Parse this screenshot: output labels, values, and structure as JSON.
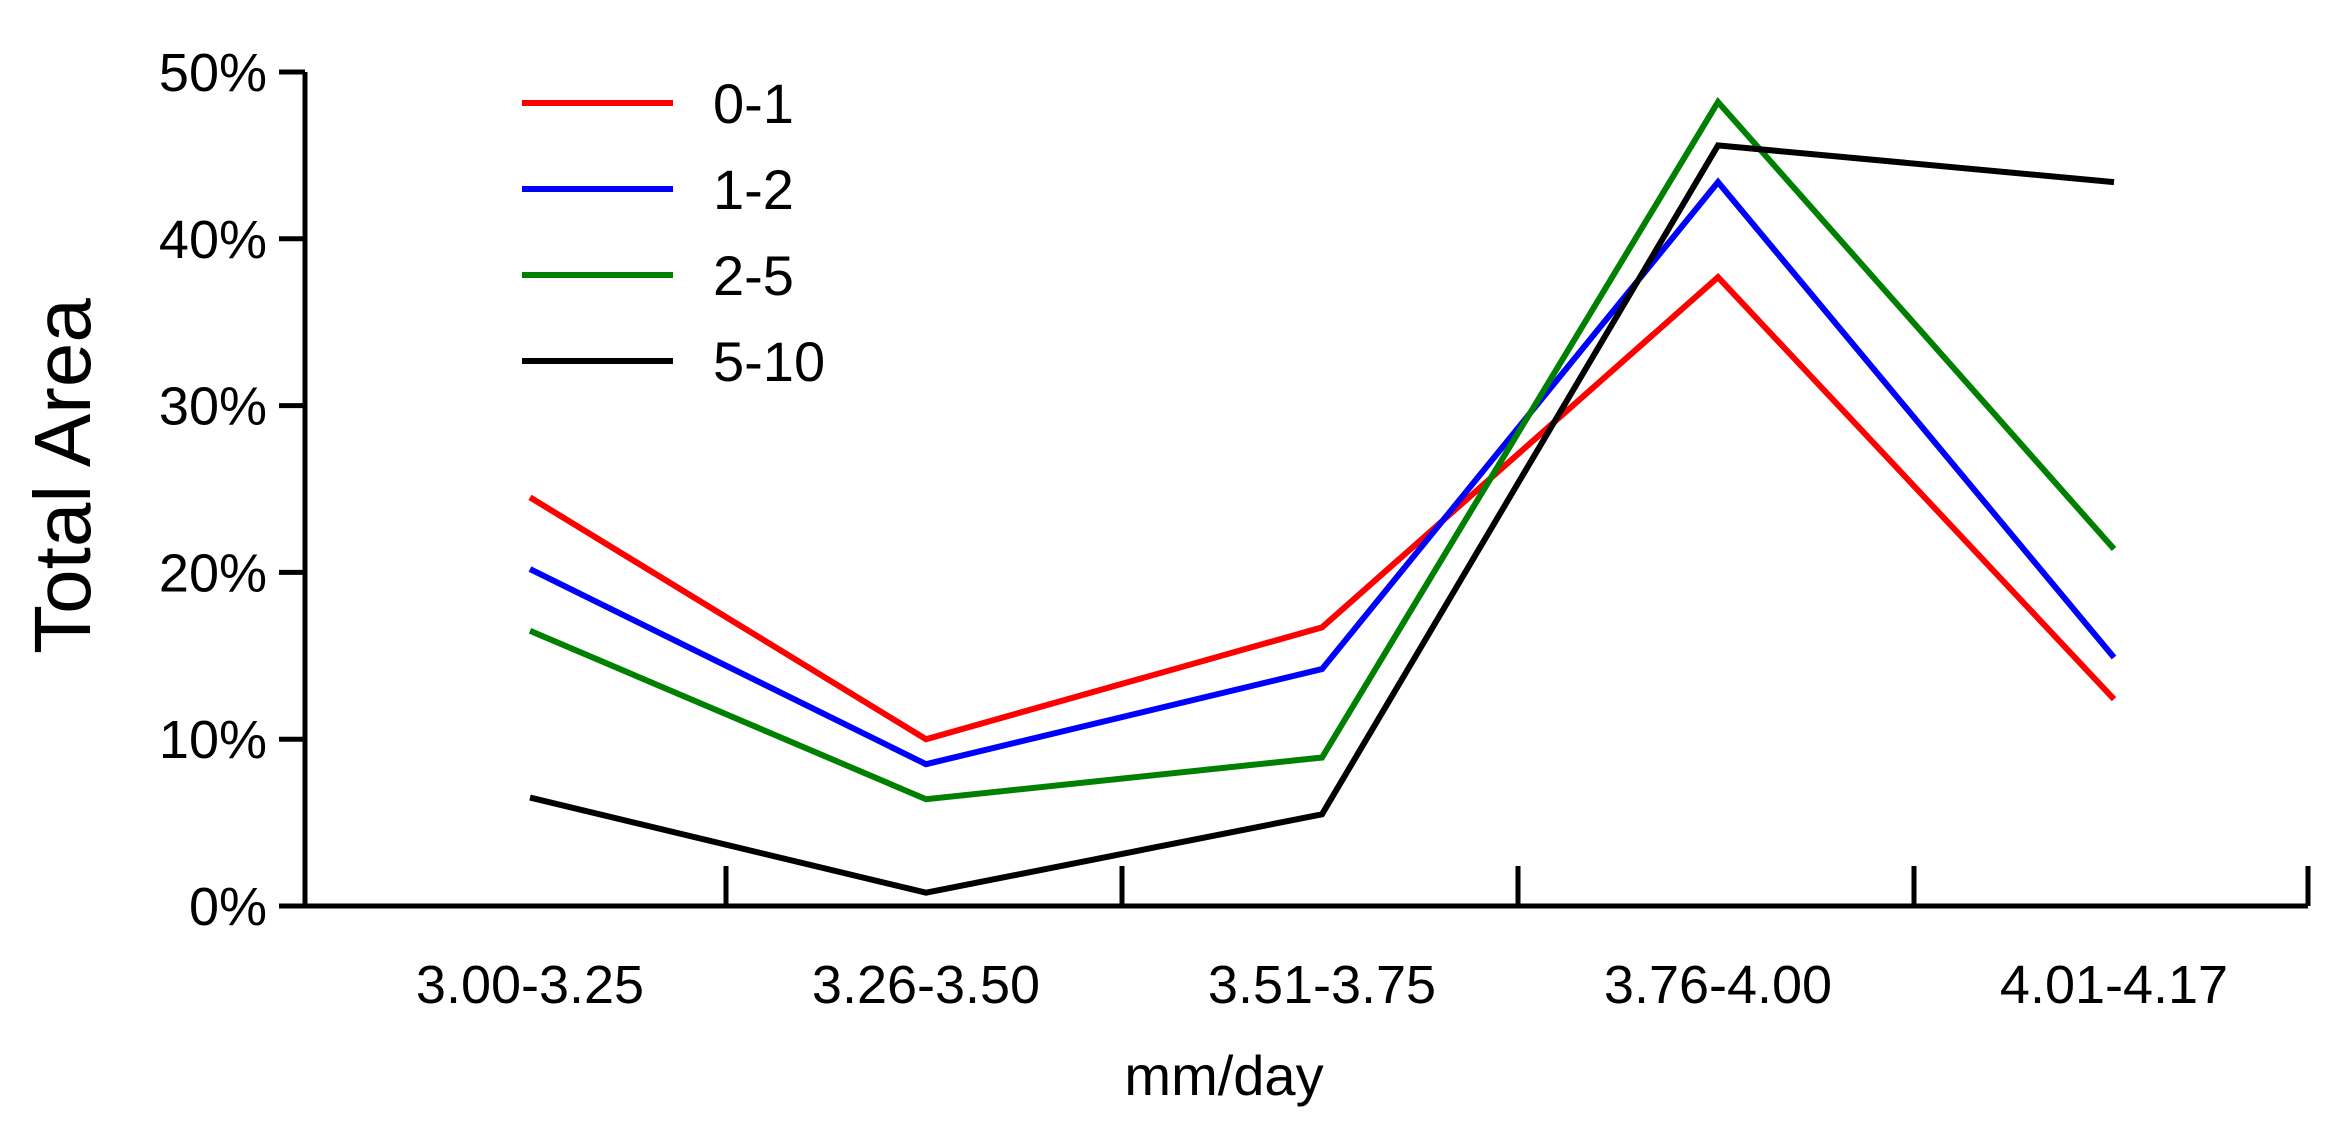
{
  "chart_data": {
    "type": "line",
    "title": "",
    "xlabel": "mm/day",
    "ylabel": "Total Area",
    "categories": [
      "3.00-3.25",
      "3.26-3.50",
      "3.51-3.75",
      "3.76-4.00",
      "4.01-4.17"
    ],
    "ylim": [
      0,
      50
    ],
    "yticks": [
      0,
      10,
      20,
      30,
      40,
      50
    ],
    "ytick_labels": [
      "0%",
      "10%",
      "20%",
      "30%",
      "40%",
      "50%"
    ],
    "grid": false,
    "legend_position": "top-left",
    "series": [
      {
        "name": "0-1",
        "color": "#ff0000",
        "values": [
          24.5,
          10.0,
          16.7,
          37.7,
          12.4
        ]
      },
      {
        "name": "1-2",
        "color": "#0000ff",
        "values": [
          20.2,
          8.5,
          14.2,
          43.4,
          14.9
        ]
      },
      {
        "name": "2-5",
        "color": "#008000",
        "values": [
          16.5,
          6.4,
          8.9,
          48.2,
          21.4
        ]
      },
      {
        "name": "5-10",
        "color": "#000000",
        "values": [
          6.5,
          0.8,
          5.5,
          45.6,
          43.4
        ]
      }
    ]
  }
}
